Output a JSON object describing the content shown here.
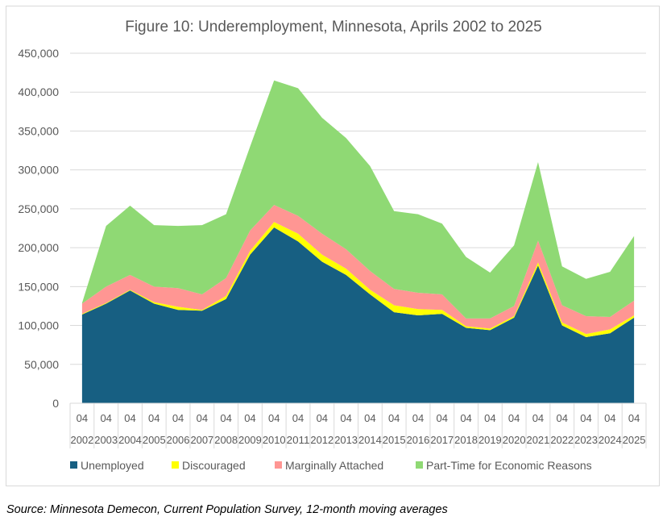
{
  "chart_data": {
    "type": "area",
    "stacked": true,
    "title": "Figure 10: Underemployment, Minnesota, Aprils 2002 to 2025",
    "xlabel": "",
    "ylabel": "",
    "ylim": [
      0,
      450000
    ],
    "yticks": [
      0,
      50000,
      100000,
      150000,
      200000,
      250000,
      300000,
      350000,
      400000,
      450000
    ],
    "ytick_labels": [
      "0",
      "50,000",
      "100,000",
      "150,000",
      "200,000",
      "250,000",
      "300,000",
      "350,000",
      "400,000",
      "450,000"
    ],
    "grid": true,
    "legend_position": "bottom",
    "month_label": "04",
    "categories": [
      "2002",
      "2003",
      "2004",
      "2005",
      "2006",
      "2007",
      "2008",
      "2009",
      "2010",
      "2011",
      "2012",
      "2013",
      "2014",
      "2015",
      "2016",
      "2017",
      "2018",
      "2019",
      "2020",
      "2021",
      "2022",
      "2023",
      "2024",
      "2025"
    ],
    "series": [
      {
        "name": "Unemployed",
        "color": "#175f82",
        "values": [
          114000,
          128000,
          145000,
          128000,
          120000,
          119000,
          134000,
          191000,
          226000,
          208000,
          182000,
          165000,
          140000,
          117000,
          113000,
          115000,
          97000,
          94000,
          110000,
          177000,
          100000,
          85000,
          90000,
          110000
        ]
      },
      {
        "name": "Discouraged",
        "color": "#ffff00",
        "values": [
          1000,
          1000,
          1000,
          2000,
          4000,
          1000,
          4000,
          5000,
          7000,
          10000,
          9000,
          8000,
          6000,
          9000,
          8000,
          5000,
          2000,
          2000,
          2000,
          4000,
          4000,
          4000,
          5000,
          3000
        ]
      },
      {
        "name": "Marginally Attached",
        "color": "#ff9693",
        "values": [
          13000,
          21000,
          19000,
          20000,
          24000,
          20000,
          23000,
          26000,
          22000,
          23000,
          27000,
          25000,
          24000,
          21000,
          21000,
          20000,
          10000,
          13000,
          13000,
          28000,
          22000,
          23000,
          16000,
          19000
        ]
      },
      {
        "name": "Part-Time for Economic Reasons",
        "color": "#8fd974",
        "values": [
          1000,
          78000,
          89000,
          79000,
          80000,
          89000,
          82000,
          108000,
          160000,
          164000,
          149000,
          143000,
          135000,
          100000,
          101000,
          91000,
          79000,
          59000,
          78000,
          101000,
          50000,
          48000,
          58000,
          83000
        ]
      }
    ]
  },
  "source": "Source: Minnesota Demecon, Current Population Survey, 12-month moving averages"
}
